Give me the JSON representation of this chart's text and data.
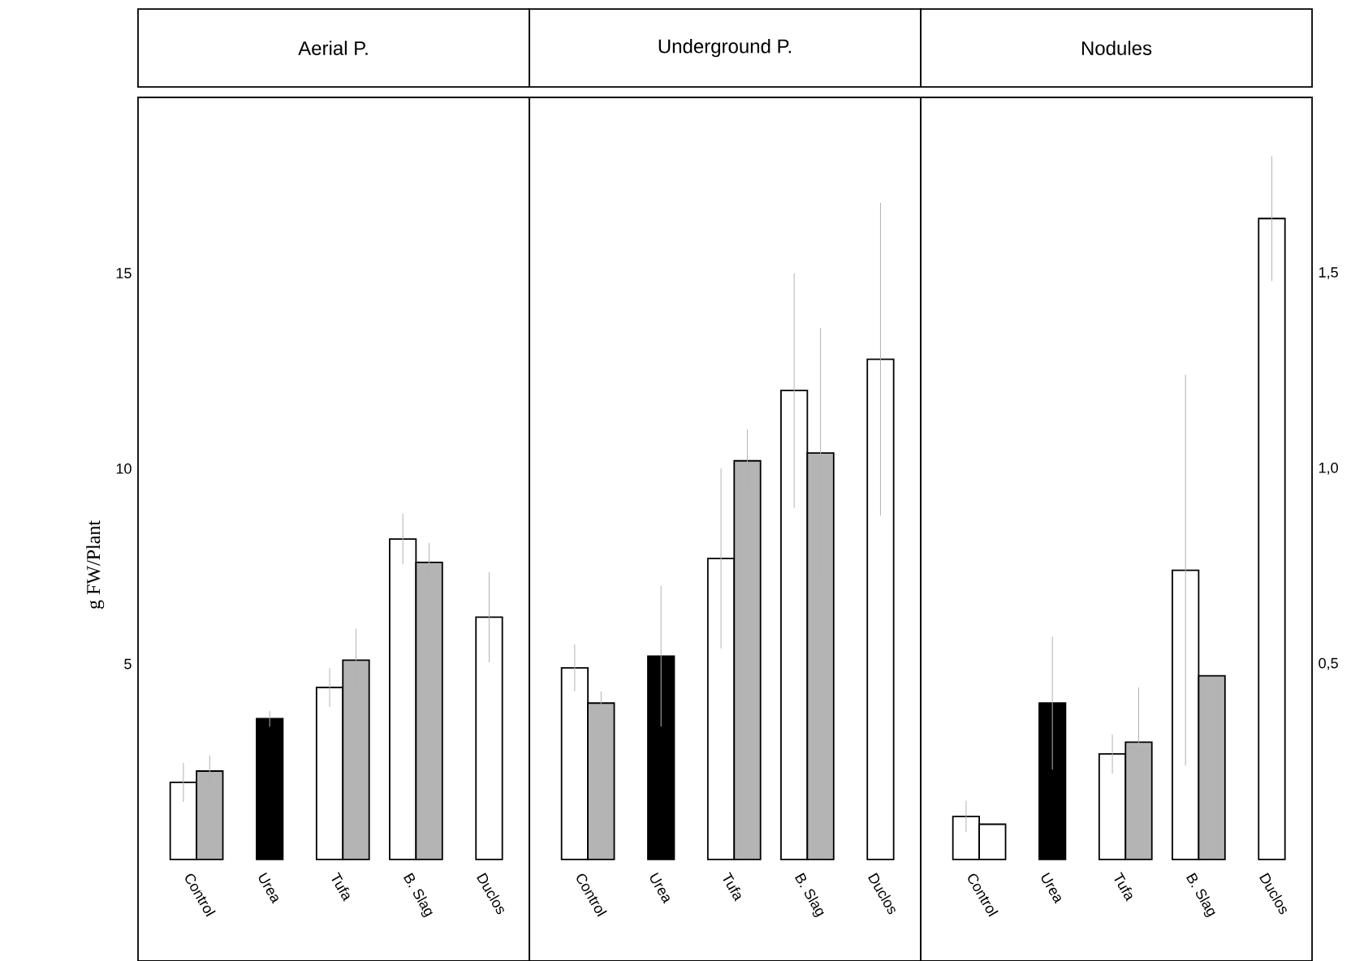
{
  "chart_data": [
    {
      "type": "bar",
      "title": "Aerial P.",
      "ylabel": "g FW/Plant",
      "categories": [
        "Control",
        "Urea",
        "Tufa",
        "B. Slag",
        "Duclos"
      ],
      "ylim": [
        -2.6,
        19.5
      ],
      "yticks": [
        5,
        10,
        15
      ],
      "series": [
        {
          "color": "#ffffff",
          "values": [
            1.97,
            null,
            4.4,
            8.2,
            6.2
          ],
          "errors": [
            0.5,
            null,
            0.5,
            0.65,
            1.15
          ]
        },
        {
          "color": "#b4b4b4",
          "values": [
            2.26,
            null,
            5.1,
            7.6,
            null
          ],
          "errors": [
            0.4,
            null,
            0.8,
            0.5,
            null
          ]
        },
        {
          "color": "#000000",
          "values": [
            null,
            3.6,
            null,
            null,
            null
          ],
          "errors": [
            null,
            0.2,
            null,
            null,
            null
          ]
        }
      ]
    },
    {
      "type": "bar",
      "title": "Underground P.",
      "categories": [
        "Control",
        "Urea",
        "Tufa",
        "B. Slag",
        "Duclos"
      ],
      "ylim": [
        -2.6,
        19.5
      ],
      "yticks": [
        5,
        10,
        15
      ],
      "tick_labels": "x",
      "series": [
        {
          "color": "#ffffff",
          "values": [
            4.9,
            null,
            7.7,
            12.0,
            12.8
          ],
          "errors": [
            0.6,
            null,
            2.3,
            3.0,
            4.0
          ]
        },
        {
          "color": "#b4b4b4",
          "values": [
            4.0,
            null,
            10.2,
            10.4,
            null
          ],
          "errors": [
            0.3,
            null,
            0.8,
            3.2,
            null
          ]
        },
        {
          "color": "#000000",
          "values": [
            null,
            5.2,
            null,
            null,
            null
          ],
          "errors": [
            null,
            1.8,
            null,
            null,
            null
          ]
        }
      ]
    },
    {
      "type": "bar",
      "title": "Nodules",
      "categories": [
        "Control",
        "Urea",
        "Tufa",
        "B. Slag",
        "Duclos"
      ],
      "y2lim": [
        -0.26,
        1.95
      ],
      "y2ticks": [
        {
          "value": 0.5,
          "label": "0,5"
        },
        {
          "value": 1.0,
          "label": "1,0"
        },
        {
          "value": 1.5,
          "label": "1,5"
        }
      ],
      "series": [
        {
          "color": "#ffffff",
          "axis": "y2",
          "values": [
            0.11,
            null,
            0.27,
            0.74,
            1.64
          ],
          "errors": [
            0.04,
            null,
            0.05,
            0.5,
            0.16
          ]
        },
        {
          "colors": [
            "#ffffff",
            null,
            "#b4b4b4",
            "#b4b4b4",
            null
          ],
          "axis": "y2",
          "values": [
            0.09,
            null,
            0.3,
            0.47,
            null
          ],
          "errors": [
            null,
            null,
            0.14,
            null,
            null
          ]
        },
        {
          "color": "#000000",
          "axis": "y2",
          "values": [
            null,
            0.4,
            null,
            null,
            null
          ],
          "errors": [
            null,
            0.17,
            null,
            null,
            null
          ]
        }
      ]
    }
  ]
}
